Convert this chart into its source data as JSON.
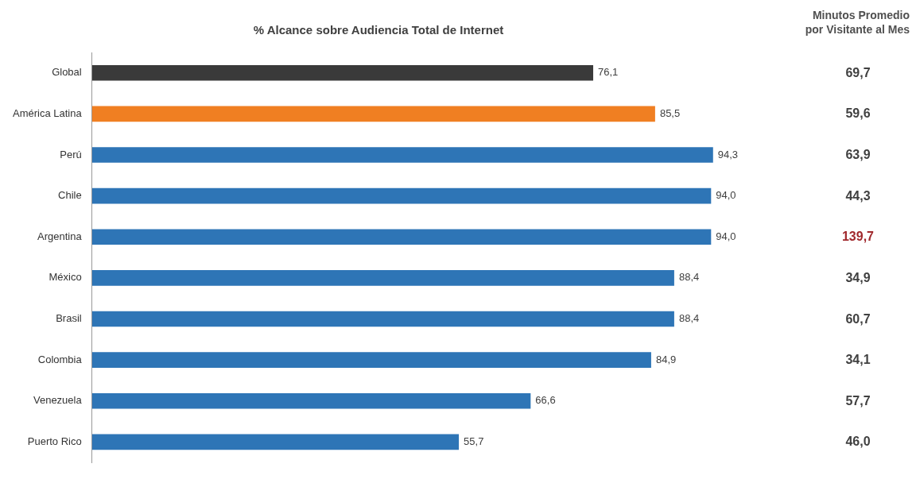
{
  "chart_data": [
    {
      "type": "bar",
      "orientation": "horizontal",
      "title": "% Alcance sobre Audiencia Total de Internet",
      "categories": [
        "Global",
        "América Latina",
        "Perú",
        "Chile",
        "Argentina",
        "México",
        "Brasil",
        "Colombia",
        "Venezuela",
        "Puerto Rico"
      ],
      "values": [
        76.1,
        85.5,
        94.3,
        94.0,
        94.0,
        88.4,
        88.4,
        84.9,
        66.6,
        55.7
      ],
      "colors": [
        "#3a3a3a",
        "#f07f22",
        "#2e75b6",
        "#2e75b6",
        "#2e75b6",
        "#2e75b6",
        "#2e75b6",
        "#2e75b6",
        "#2e75b6",
        "#2e75b6"
      ],
      "value_labels": [
        "76,1",
        "85,5",
        "94,3",
        "94,0",
        "94,0",
        "88,4",
        "88,4",
        "84,9",
        "66,6",
        "55,7"
      ],
      "grid": false,
      "legend": false,
      "tick_labels": "y"
    },
    {
      "type": "other",
      "title": "Minutos Promedio por Visitante al Mes",
      "values": [
        69.7,
        59.6,
        63.9,
        44.3,
        139.7,
        34.9,
        60.7,
        34.1,
        57.7,
        46.0
      ],
      "colors": [
        "#404040",
        "#404040",
        "#404040",
        "#404040",
        "#a0282c",
        "#404040",
        "#404040",
        "#404040",
        "#404040",
        "#404040"
      ],
      "value_labels": [
        "69,7",
        "59,6",
        "63,9",
        "44,3",
        "139,7",
        "34,9",
        "60,7",
        "34,1",
        "57,7",
        "46,0"
      ]
    }
  ]
}
